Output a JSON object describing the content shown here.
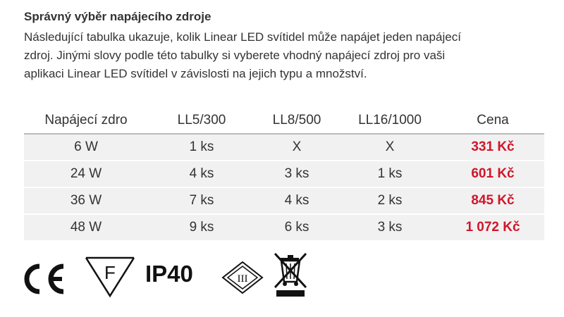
{
  "heading": "Správný výběr napájecího zdroje",
  "description_lines": [
    "Následující tabulka ukazuje, kolik Linear LED svítidel může napájet jeden napájecí",
    "zdroj. Jinými slovy podle této tabulky si vyberete vhodný napájecí zdroj pro vaši",
    "aplikaci Linear LED svítidel v závislosti na jejich typu a množství."
  ],
  "table": {
    "headers": [
      "Napájecí zdro",
      "LL5/300",
      "LL8/500",
      "LL16/1000",
      "Cena"
    ],
    "rows": [
      [
        "6 W",
        "1 ks",
        "X",
        "X",
        "331 Kč"
      ],
      [
        "24 W",
        "4 ks",
        "3 ks",
        "1 ks",
        "601 Kč"
      ],
      [
        "36 W",
        "7 ks",
        "4 ks",
        "2 ks",
        "845 Kč"
      ],
      [
        "48 W",
        "9 ks",
        "6 ks",
        "3 ks",
        "1 072 Kč"
      ]
    ]
  },
  "certifications": {
    "ce_mark": "CE",
    "f_mark": "F",
    "ip_rating": "IP40",
    "class_mark": "III",
    "icon_names": [
      "ce-mark-icon",
      "f-mark-icon",
      "ip40-label",
      "class-iii-icon",
      "weee-bin-icon"
    ]
  },
  "colors": {
    "price": "#d1152a",
    "row_bg": "#f1f1f1",
    "text": "#333333"
  }
}
